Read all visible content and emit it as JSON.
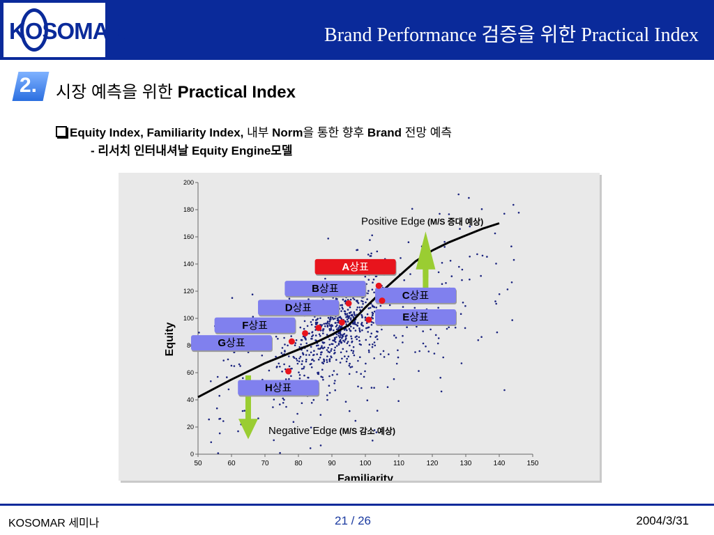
{
  "header": {
    "logo_text": "KOSOMAR",
    "title": "Brand Performance 검증을 위한 Practical Index"
  },
  "section": {
    "number": "2.",
    "title_korean": "시장 예측을 위한 ",
    "title_bold": "Practical Index"
  },
  "bullet": {
    "part1_bold": "Equity Index, Familiarity Index,",
    "part2": " 내부 ",
    "part3_bold": "Norm",
    "part4": "을 통한 향후 ",
    "part5_bold": "Brand",
    "part6": " 전망 예측"
  },
  "subline": {
    "prefix": "- 리서치 인터내셔날 ",
    "bold": "Equity Engine",
    "suffix": "모델"
  },
  "chart_data": {
    "type": "scatter",
    "xlabel": "Familiarity",
    "ylabel": "Equity",
    "xlim": [
      50,
      150
    ],
    "ylim": [
      0,
      200
    ],
    "xticks": [
      "50",
      "60",
      "70",
      "80",
      "90",
      "100",
      "110",
      "120",
      "130",
      "140",
      "150"
    ],
    "yticks": [
      "0",
      "20",
      "40",
      "60",
      "80",
      "100",
      "120",
      "140",
      "160",
      "180",
      "200"
    ],
    "colors": {
      "points": "#1a237e",
      "curve": "#000000",
      "highlight": "#e8141c",
      "label_fill": "#8080ee",
      "label_highlight": "#e8141c",
      "arrow": "#9acd32"
    },
    "curve": [
      [
        50,
        42
      ],
      [
        60,
        55
      ],
      [
        70,
        67
      ],
      [
        80,
        77
      ],
      [
        85,
        82
      ],
      [
        90,
        88
      ],
      [
        95,
        95
      ],
      [
        100,
        108
      ],
      [
        105,
        120
      ],
      [
        110,
        131
      ],
      [
        115,
        142
      ],
      [
        120,
        150
      ],
      [
        125,
        156
      ],
      [
        130,
        161
      ],
      [
        135,
        166
      ],
      [
        140,
        170
      ],
      [
        142,
        162
      ]
    ],
    "highlighted_brands": [
      {
        "name": "A",
        "suffix": "상표",
        "x": 104,
        "y": 124,
        "label_x": 97,
        "label_y": 138,
        "highlight": true
      },
      {
        "name": "B",
        "suffix": "상표",
        "x": 95,
        "y": 111,
        "label_x": 88,
        "label_y": 122,
        "highlight": false
      },
      {
        "name": "C",
        "suffix": "상표",
        "x": 105,
        "y": 113,
        "label_x": 115,
        "label_y": 117,
        "highlight": false
      },
      {
        "name": "D",
        "suffix": "상표",
        "x": 93,
        "y": 97,
        "label_x": 80,
        "label_y": 108,
        "highlight": false
      },
      {
        "name": "E",
        "suffix": "상표",
        "x": 101,
        "y": 99,
        "label_x": 115,
        "label_y": 101,
        "highlight": false
      },
      {
        "name": "F",
        "suffix": "상표",
        "x": 86,
        "y": 93,
        "label_x": 67,
        "label_y": 95,
        "highlight": false
      },
      {
        "name": "F2",
        "suffix": "",
        "x": 82,
        "y": 89,
        "label_x": 0,
        "label_y": 0,
        "highlight": false
      },
      {
        "name": "G",
        "suffix": "상표",
        "x": 78,
        "y": 83,
        "label_x": 60,
        "label_y": 82,
        "highlight": false
      },
      {
        "name": "H",
        "suffix": "상표",
        "x": 77,
        "y": 61,
        "label_x": 74,
        "label_y": 49,
        "highlight": false
      }
    ],
    "annotations": {
      "positive_edge": "Positive Edge",
      "positive_note": "(M/S 증대 예상)",
      "negative_edge": "Negative Edge",
      "negative_note": "(M/S 감소 예상)"
    },
    "scatter_seed": 17,
    "scatter_count": 900
  },
  "footer": {
    "left": "KOSOMAR 세미나",
    "page": "21 / 26",
    "date": "2004/3/31"
  }
}
